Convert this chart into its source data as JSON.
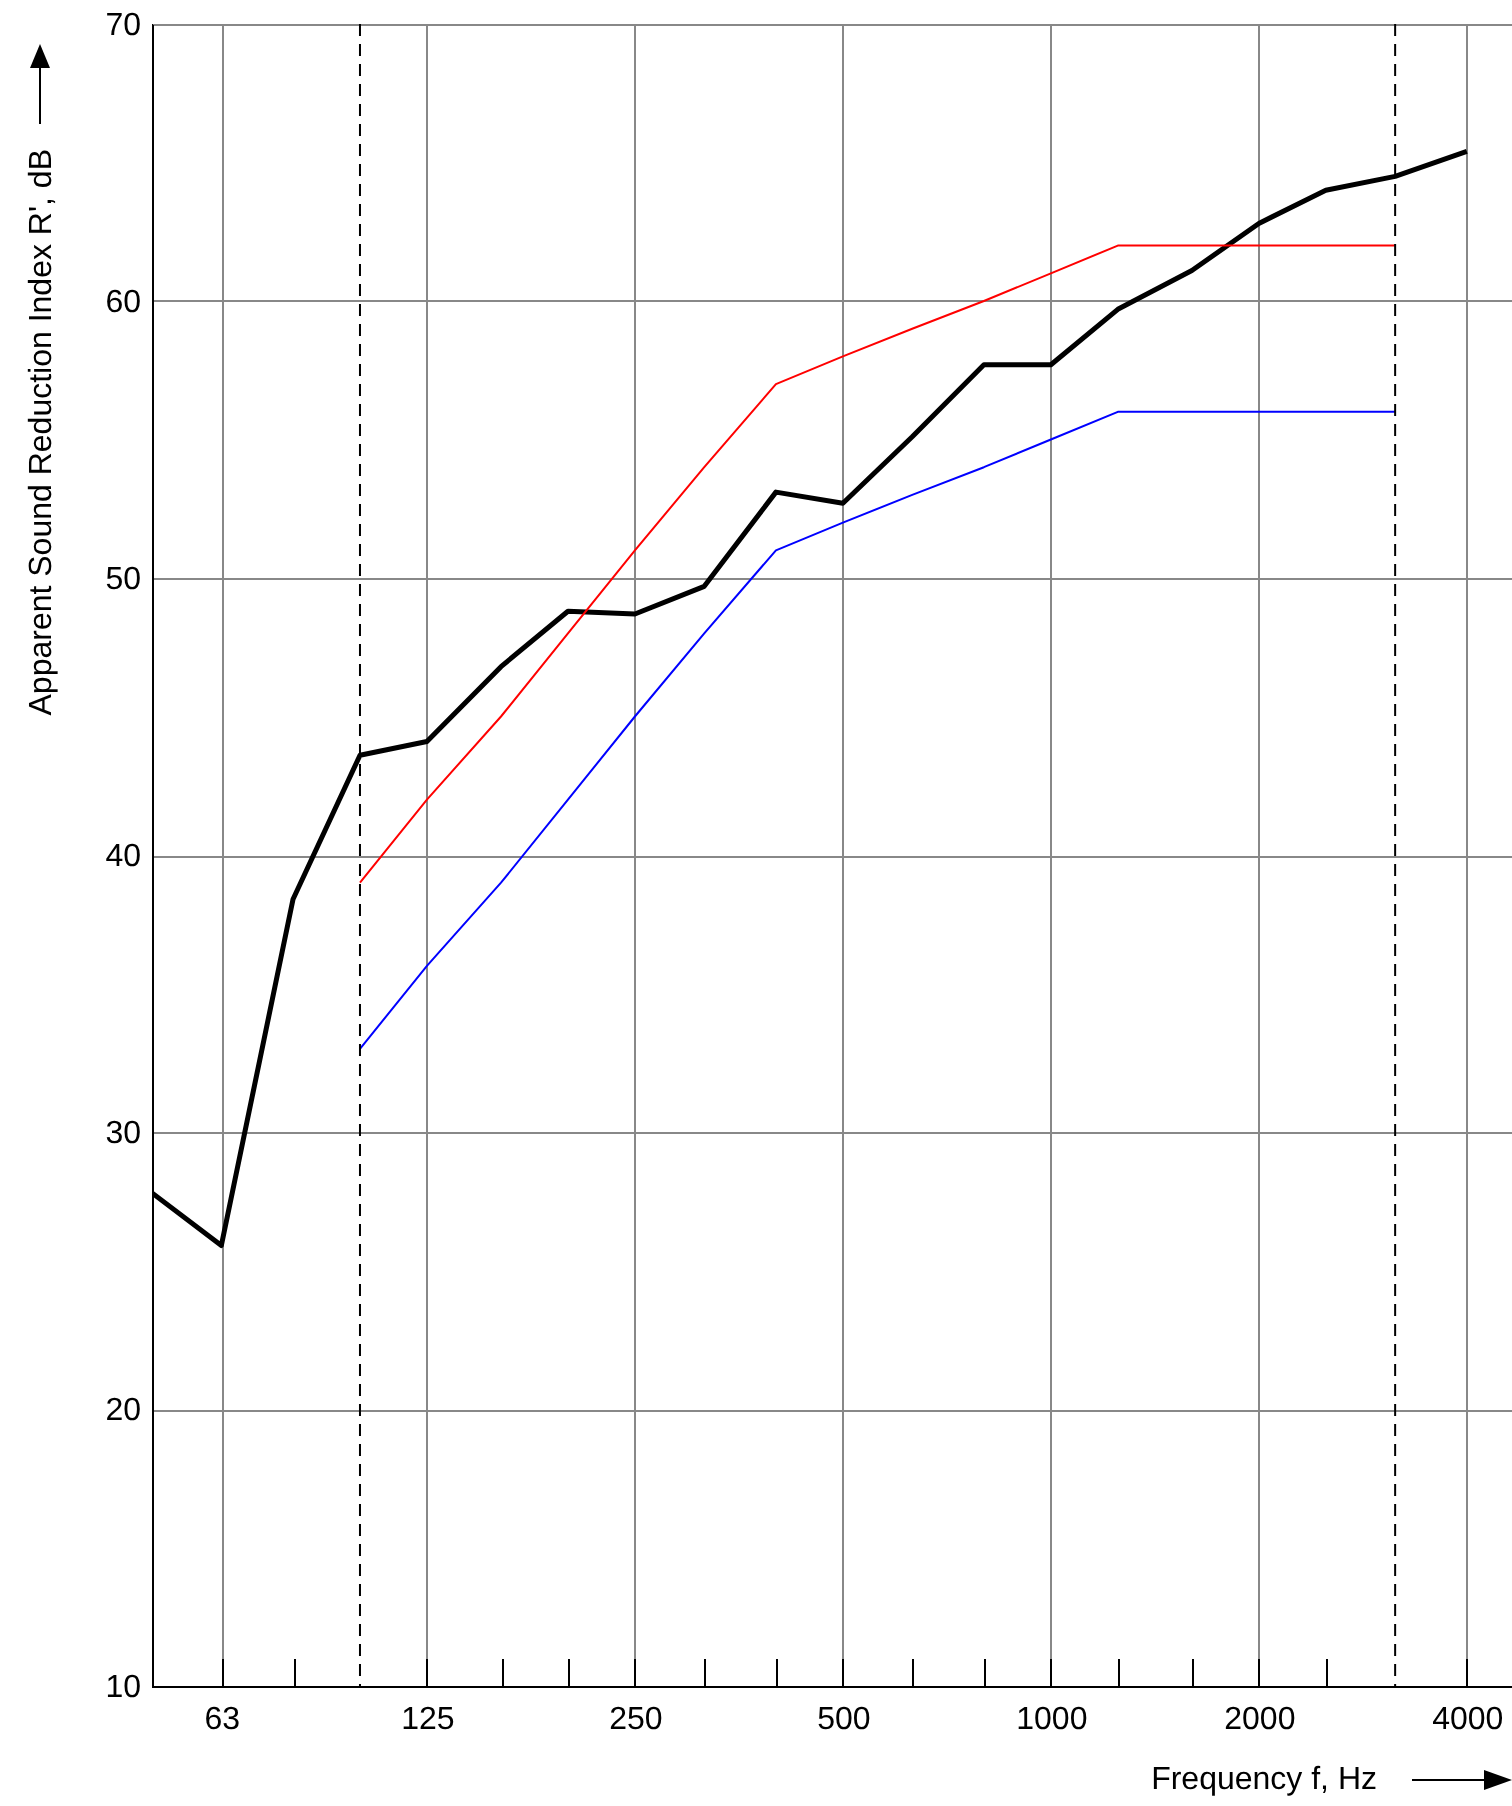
{
  "chart_data": {
    "type": "line",
    "xlabel": "Frequency f, Hz",
    "ylabel": "Apparent Sound Reduction Index R', dB",
    "log": "x",
    "xlim": [
      50,
      4650
    ],
    "ylim": [
      10,
      70
    ],
    "xticks": [
      63,
      {
        "value": 80,
        "label": null
      },
      125,
      {
        "value": 160,
        "label": null
      },
      {
        "value": 200,
        "label": null
      },
      250,
      {
        "value": 315,
        "label": null
      },
      {
        "value": 400,
        "label": null
      },
      500,
      {
        "value": 630,
        "label": null
      },
      {
        "value": 800,
        "label": null
      },
      1000,
      {
        "value": 1250,
        "label": null
      },
      {
        "value": 1600,
        "label": null
      },
      2000,
      {
        "value": 2500,
        "label": null
      },
      4000
    ],
    "yticks": [
      10,
      20,
      30,
      40,
      50,
      60,
      70
    ],
    "grid": true,
    "marker": "none",
    "line_style": "solid",
    "series": [
      {
        "color": "#000000",
        "x": [
          50,
          63,
          80,
          100,
          125,
          160,
          200,
          250,
          315,
          400,
          500,
          630,
          800,
          1000,
          1250,
          1600,
          2000,
          2500,
          3150,
          4000
        ],
        "values": [
          27.8,
          25.9,
          38.4,
          43.6,
          44.1,
          46.8,
          48.8,
          48.7,
          49.7,
          53.1,
          52.7,
          55.1,
          57.7,
          57.7,
          59.7,
          61.1,
          62.8,
          64.0,
          64.5,
          65.4
        ]
      },
      {
        "color": "#ff0000",
        "x": [
          100,
          125,
          160,
          200,
          250,
          315,
          400,
          500,
          630,
          800,
          1000,
          1250,
          1600,
          2000,
          2500,
          3150
        ],
        "values": [
          39,
          42,
          45,
          48,
          51,
          54,
          57,
          58,
          59,
          60,
          61,
          62,
          62,
          62,
          62,
          62
        ]
      },
      {
        "color": "#0000ff",
        "x": [
          100,
          125,
          160,
          200,
          250,
          315,
          400,
          500,
          630,
          800,
          1000,
          1250,
          1600,
          2000,
          2500,
          3150
        ],
        "values": [
          33,
          36,
          39,
          42,
          45,
          48,
          51,
          52,
          53,
          54,
          55,
          56,
          56,
          56,
          56,
          56
        ]
      }
    ],
    "ref_lines": [
      {
        "axis": "x",
        "value": 100,
        "color": "#000000",
        "line_style": "dashed"
      },
      {
        "axis": "x",
        "value": 3150,
        "color": "#000000",
        "line_style": "dashed"
      }
    ]
  }
}
